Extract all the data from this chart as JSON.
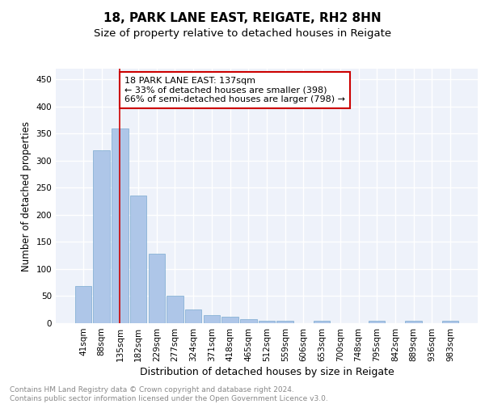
{
  "title1": "18, PARK LANE EAST, REIGATE, RH2 8HN",
  "title2": "Size of property relative to detached houses in Reigate",
  "xlabel": "Distribution of detached houses by size in Reigate",
  "ylabel": "Number of detached properties",
  "bar_labels": [
    "41sqm",
    "88sqm",
    "135sqm",
    "182sqm",
    "229sqm",
    "277sqm",
    "324sqm",
    "371sqm",
    "418sqm",
    "465sqm",
    "512sqm",
    "559sqm",
    "606sqm",
    "653sqm",
    "700sqm",
    "748sqm",
    "795sqm",
    "842sqm",
    "889sqm",
    "936sqm",
    "983sqm"
  ],
  "bar_values": [
    68,
    320,
    360,
    235,
    128,
    50,
    25,
    15,
    12,
    8,
    5,
    5,
    0,
    4,
    0,
    0,
    4,
    0,
    4,
    0,
    4
  ],
  "bar_color": "#aec6e8",
  "bar_edge_color": "#7aaad0",
  "highlight_bar_index": 2,
  "highlight_line_color": "#cc0000",
  "annotation_text": "18 PARK LANE EAST: 137sqm\n← 33% of detached houses are smaller (398)\n66% of semi-detached houses are larger (798) →",
  "annotation_box_color": "#ffffff",
  "annotation_box_edge_color": "#cc0000",
  "plot_bg_color": "#eef2fa",
  "grid_color": "#ffffff",
  "yticks": [
    0,
    50,
    100,
    150,
    200,
    250,
    300,
    350,
    400,
    450
  ],
  "ylim": [
    0,
    470
  ],
  "footer_text": "Contains HM Land Registry data © Crown copyright and database right 2024.\nContains public sector information licensed under the Open Government Licence v3.0.",
  "title1_fontsize": 11,
  "title2_fontsize": 9.5,
  "xlabel_fontsize": 9,
  "ylabel_fontsize": 8.5,
  "tick_fontsize": 7.5,
  "annotation_fontsize": 8,
  "footer_fontsize": 6.5
}
